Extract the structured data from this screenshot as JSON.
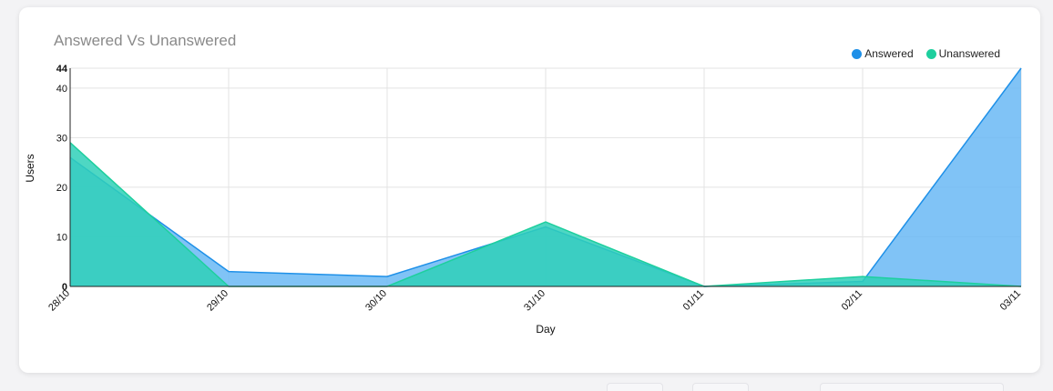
{
  "card": {
    "title": "Answered Vs Unanswered"
  },
  "legend": [
    {
      "label": "Answered",
      "color": "#1e90e8"
    },
    {
      "label": "Unanswered",
      "color": "#1ecf9e"
    }
  ],
  "chart_data": {
    "type": "area",
    "categories": [
      "28/10",
      "29/10",
      "30/10",
      "31/10",
      "01/11",
      "02/11",
      "03/11"
    ],
    "series": [
      {
        "name": "Answered",
        "values": [
          26,
          3,
          2,
          12,
          0,
          1,
          44
        ],
        "stroke": "#1e90e8",
        "fill": "#6ab8f5"
      },
      {
        "name": "Unanswered",
        "values": [
          29,
          0,
          0,
          13,
          0,
          2,
          0
        ],
        "stroke": "#1ecf9e",
        "fill": "#2fd0b8"
      }
    ],
    "xlabel": "Day",
    "ylabel": "Users",
    "ylim": [
      0,
      44
    ],
    "yticks": [
      0,
      10,
      20,
      30,
      40,
      44
    ],
    "grid": true
  }
}
